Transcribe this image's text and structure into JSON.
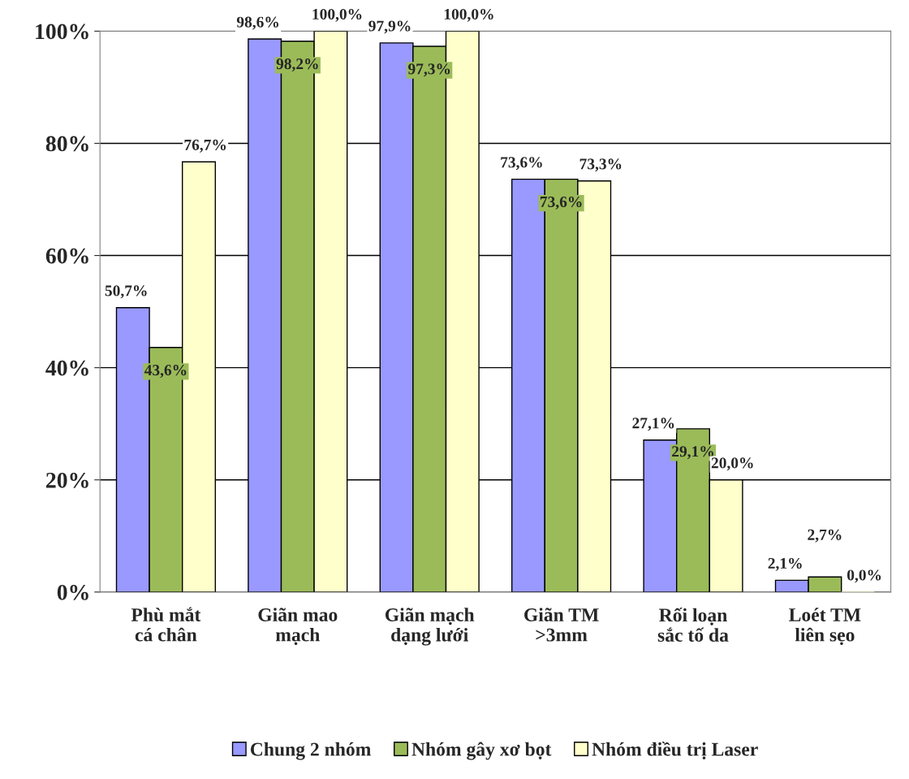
{
  "chart_data": {
    "type": "bar",
    "categories": [
      "Phù mắt\ncá chân",
      "Giãn mao\nmạch",
      "Giãn mạch\ndạng lưới",
      "Giãn TM\n>3mm",
      "Rối loạn\nsắc tố da",
      "Loét TM\nliên sẹo"
    ],
    "series": [
      {
        "name": "Chung 2 nhóm",
        "color": "#9999ff",
        "values": [
          50.7,
          98.6,
          97.9,
          73.6,
          27.1,
          2.1
        ],
        "value_labels": [
          "50,7%",
          "98,6%",
          "97,9%",
          "73,6%",
          "27,1%",
          "2,1%"
        ]
      },
      {
        "name": "Nhóm gây xơ bọt",
        "color": "#9bbb59",
        "values": [
          43.6,
          98.2,
          97.3,
          73.6,
          29.1,
          2.7
        ],
        "value_labels": [
          "43,6%",
          "98,2%",
          "97,3%",
          "73,6%",
          "29,1%",
          "2,7%"
        ]
      },
      {
        "name": "Nhóm điều trị Laser",
        "color": "#ffffcc",
        "values": [
          76.7,
          100.0,
          100.0,
          73.3,
          20.0,
          0.0
        ],
        "value_labels": [
          "76,7%",
          "100,0%",
          "100,0%",
          "73,3%",
          "20,0%",
          "0,0%"
        ]
      }
    ],
    "ylim": [
      0,
      100
    ],
    "yticks": [
      {
        "value": 0,
        "label": "0%"
      },
      {
        "value": 20,
        "label": "20%"
      },
      {
        "value": 40,
        "label": "40%"
      },
      {
        "value": 60,
        "label": "60%"
      },
      {
        "value": 80,
        "label": "80%"
      },
      {
        "value": 100,
        "label": "100%"
      }
    ],
    "grid": "y",
    "legend": "bottom"
  }
}
